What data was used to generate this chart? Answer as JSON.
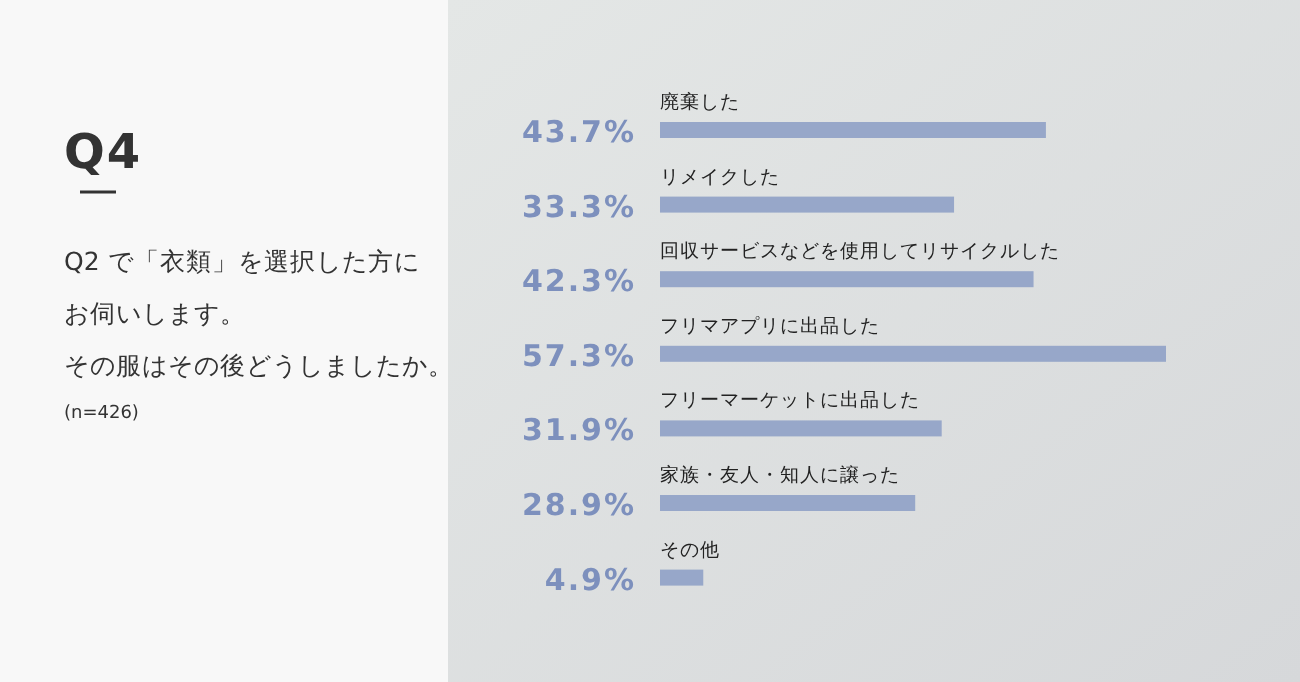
{
  "chart_data": {
    "type": "bar",
    "orientation": "horizontal",
    "title": "Q4",
    "subtitle": "Q2 で「衣類」を選択した方にお伺いします。",
    "annotations": [
      "その服はその後どうしましたか。",
      "(n=426)"
    ],
    "categories": [
      "廃棄した",
      "リメイクした",
      "回収サービスなどを使用してリサイクルした",
      "フリマアプリに出品した",
      "フリーマーケットに出品した",
      "家族・友人・知人に譲った",
      "その他"
    ],
    "values": [
      43.7,
      33.3,
      42.3,
      57.3,
      31.9,
      28.9,
      4.9
    ],
    "value_labels": [
      "43.7%",
      "33.3%",
      "42.3%",
      "57.3%",
      "31.9%",
      "28.9%",
      "4.9%"
    ],
    "color": "#97a7c9"
  }
}
